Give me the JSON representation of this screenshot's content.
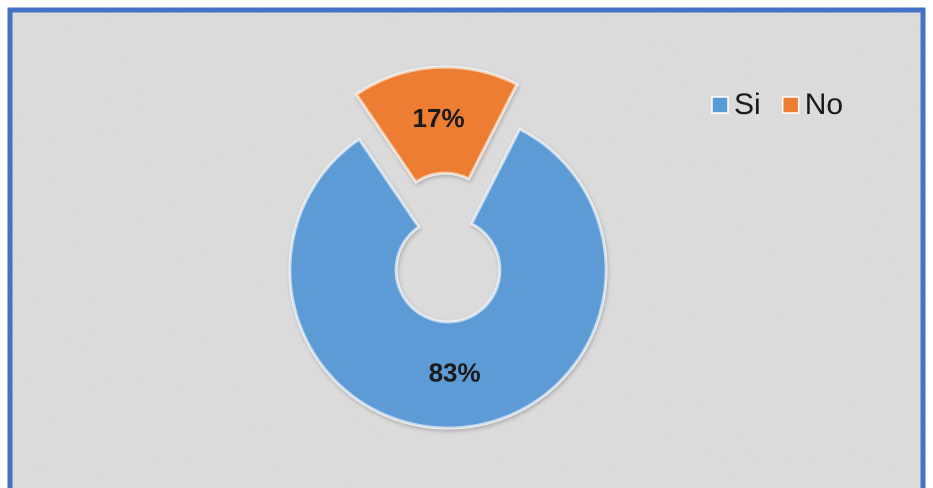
{
  "chart_data": {
    "type": "pie",
    "categories": [
      "Si",
      "No"
    ],
    "values": [
      83,
      17
    ],
    "value_labels": [
      "83%",
      "17%"
    ],
    "colors": [
      "#5b9bd5",
      "#ed7d31"
    ],
    "donut": true,
    "exploded": [
      false,
      true
    ],
    "legend": "top-right"
  }
}
